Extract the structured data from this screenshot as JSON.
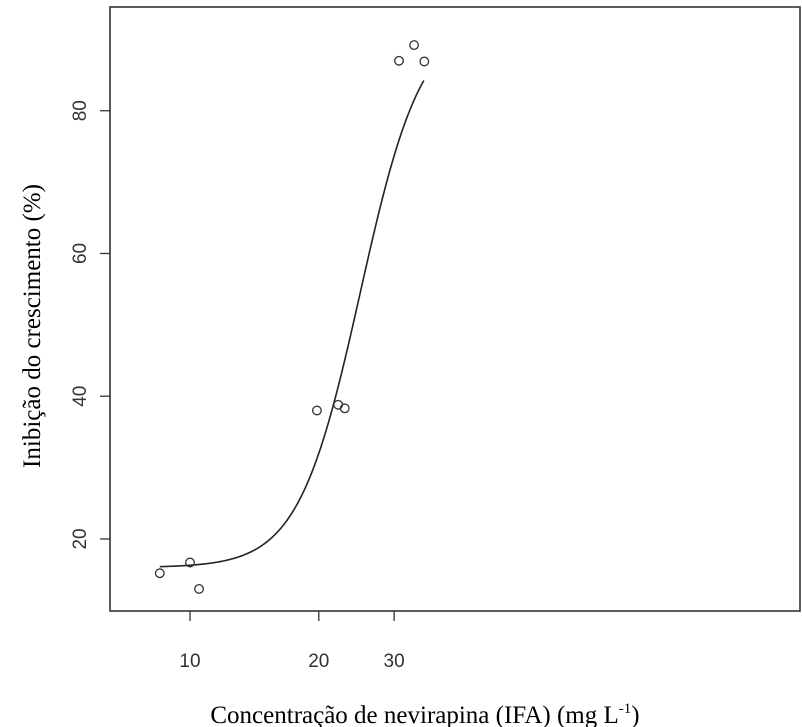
{
  "chart_data": {
    "type": "scatter",
    "title": "",
    "xlabel": "Concentração de nevirapina (IFA) (mg L",
    "xlabel_sup": "-1",
    "xlabel_close": ")",
    "ylabel": "Inibição do crescimento (%)",
    "x_scale": "log",
    "y_scale": "linear",
    "xlim": [
      8.2,
      36
    ],
    "ylim": [
      10.5,
      95
    ],
    "x_ticks": [
      10,
      20,
      30
    ],
    "x_tick_labels": [
      "10",
      "20",
      "30"
    ],
    "y_ticks": [
      20,
      40,
      60,
      80
    ],
    "y_tick_labels": [
      "20",
      "40",
      "60",
      "80"
    ],
    "grid": false,
    "legend": "none",
    "points": {
      "x": [
        8.5,
        10.0,
        10.5,
        19.8,
        22.2,
        23.0,
        30.8,
        33.4,
        35.3
      ],
      "y": [
        15.2,
        16.7,
        13.0,
        38.0,
        38.8,
        38.3,
        87.0,
        89.2,
        86.9
      ]
    },
    "fit": {
      "model": "four-parameter logistic",
      "lower": 16.0,
      "upper": 93.0,
      "ec50": 25.0,
      "hill": 6.0,
      "x_range": [
        8.5,
        35.2
      ]
    },
    "colors": {
      "points": "#333333",
      "curve": "#222222",
      "axes": "#333333"
    }
  }
}
